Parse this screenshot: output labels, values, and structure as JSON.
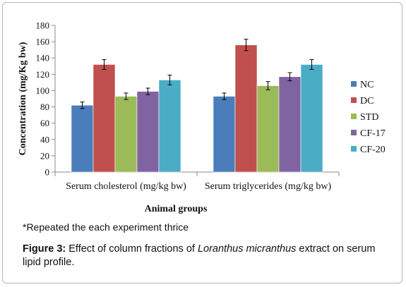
{
  "chart_data": {
    "type": "bar",
    "ylabel": "Concentration (mg/Kg bw)",
    "xlabel": "Animal groups",
    "ylim": [
      0,
      180
    ],
    "yticks": [
      "0",
      "20",
      "40",
      "60",
      "80",
      "100",
      "120",
      "140",
      "160",
      "180"
    ],
    "categories": [
      "Serum cholesterol (mg/kg bw)",
      "Serum triglycerides (mg/kg bw)"
    ],
    "series": [
      {
        "name": "NC",
        "color": "#4a7ebb",
        "values": [
          82,
          93
        ],
        "errors": [
          4,
          4
        ]
      },
      {
        "name": "DC",
        "color": "#c0504d",
        "values": [
          132,
          156
        ],
        "errors": [
          6,
          7
        ]
      },
      {
        "name": "STD",
        "color": "#9bbb59",
        "values": [
          93,
          106
        ],
        "errors": [
          4,
          5
        ]
      },
      {
        "name": "CF-17",
        "color": "#8064a2",
        "values": [
          99,
          117
        ],
        "errors": [
          4,
          5
        ]
      },
      {
        "name": "CF-20",
        "color": "#4bacc6",
        "values": [
          113,
          132
        ],
        "errors": [
          6,
          6
        ]
      }
    ],
    "grid": false,
    "legend": "right"
  },
  "note": "*Repeated the each experiment thrice",
  "caption": {
    "label": "Figure 3:",
    "text_before": " Effect of column fractions of ",
    "species": "Loranthus micranthus",
    "text_after": " extract on serum lipid profile."
  }
}
